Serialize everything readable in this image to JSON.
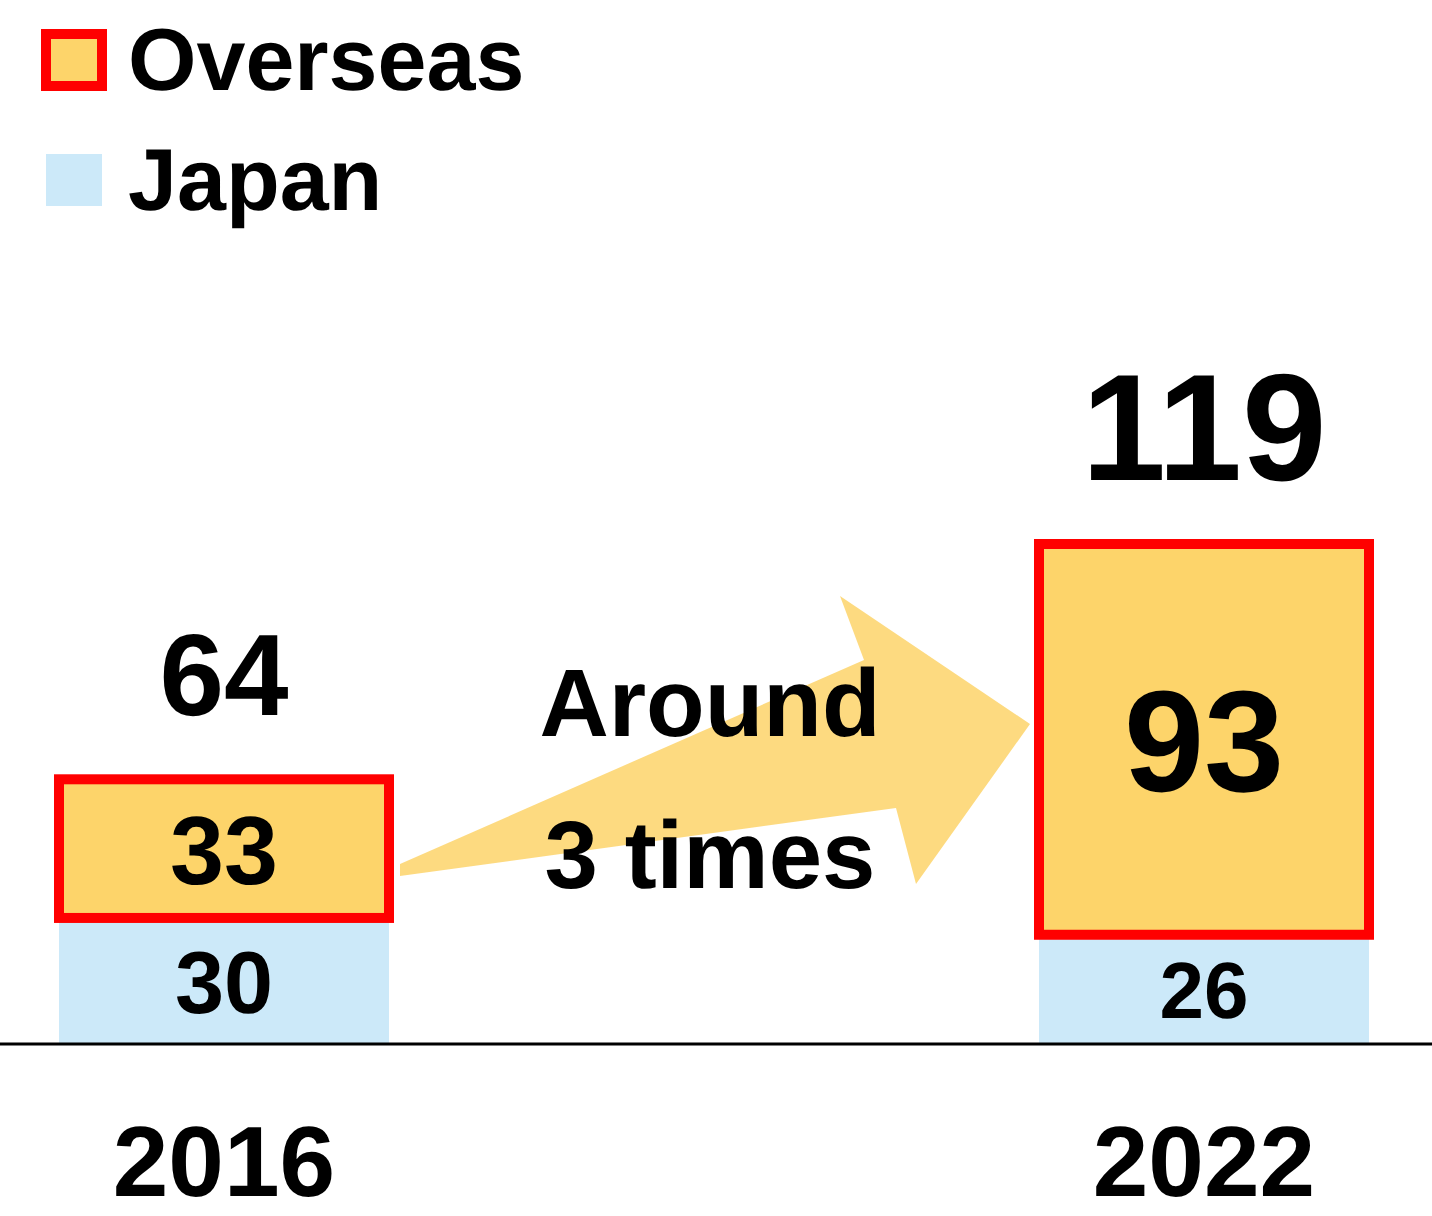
{
  "chart_data": {
    "type": "bar",
    "stacked": true,
    "categories": [
      "2016",
      "2022"
    ],
    "series": [
      {
        "name": "Japan",
        "color": "#cce9f9",
        "values": [
          30,
          26
        ]
      },
      {
        "name": "Overseas",
        "color": "#fdd46a",
        "values": [
          33,
          93
        ]
      }
    ],
    "data_labels": true,
    "totals": [
      "64",
      "119"
    ],
    "legend": "top left",
    "annotations": [
      "Around 3 times"
    ]
  }
}
